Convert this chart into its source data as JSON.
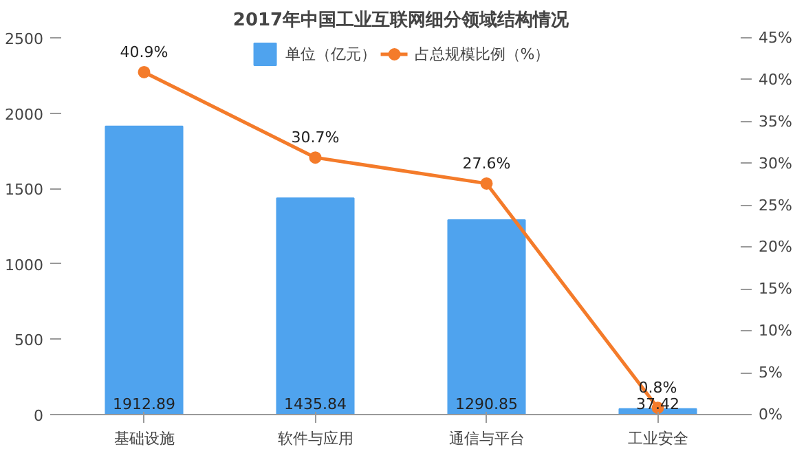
{
  "chart_data": {
    "type": "bar",
    "title": "2017年中国工业互联网细分领域结构情况",
    "categories": [
      "基础设施",
      "软件与应用",
      "通信与平台",
      "工业安全"
    ],
    "series": [
      {
        "name": "单位（亿元）",
        "color": "#4fa3ee",
        "values": [
          1912.89,
          1435.84,
          1290.85,
          37.42
        ],
        "value_labels": [
          "1912.89",
          "1435.84",
          "1290.85",
          "37.42"
        ]
      },
      {
        "name": "占总规模比例（%）",
        "type": "line",
        "axis": "y2",
        "color": "#f47b2a",
        "values": [
          40.9,
          30.7,
          27.6,
          0.8
        ],
        "value_labels": [
          "40.9%",
          "30.7%",
          "27.6%",
          "0.8%"
        ]
      }
    ],
    "ylim": [
      0,
      2500
    ],
    "yticks": [
      0,
      500,
      1000,
      1500,
      2000,
      2500
    ],
    "y2lim": [
      0,
      45
    ],
    "y2ticks": [
      {
        "value": 0,
        "label": "0%"
      },
      {
        "value": 5,
        "label": "5%"
      },
      {
        "value": 10,
        "label": "10%"
      },
      {
        "value": 15,
        "label": "15%"
      },
      {
        "value": 20,
        "label": "20%"
      },
      {
        "value": 25,
        "label": "25%"
      },
      {
        "value": 30,
        "label": "30%"
      },
      {
        "value": 35,
        "label": "35%"
      },
      {
        "value": 40,
        "label": "40%"
      },
      {
        "value": 45,
        "label": "45%"
      }
    ],
    "legend": "top",
    "grid": false,
    "marker": "circle",
    "line_style": "solid"
  }
}
